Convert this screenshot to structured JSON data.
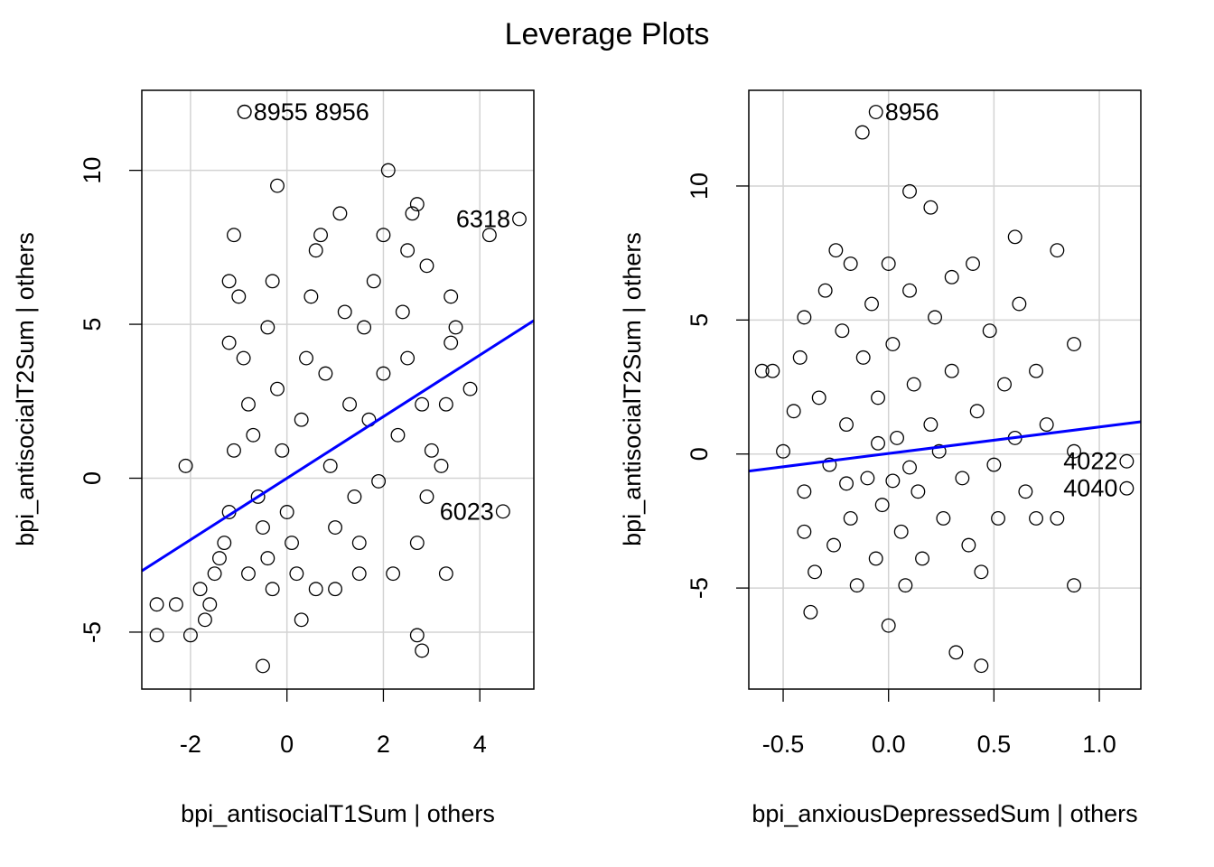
{
  "chart_data": {
    "title": "Leverage Plots",
    "panels": [
      {
        "type": "scatter",
        "xlabel": "bpi_antisocialT1Sum | others",
        "ylabel": "bpi_antisocialT2Sum  | others",
        "xlim": [
          -3.01,
          5.12
        ],
        "ylim": [
          -6.85,
          12.6
        ],
        "xticks": [
          -2,
          0,
          2,
          4
        ],
        "yticks": [
          -5,
          0,
          5,
          10
        ],
        "grid": true,
        "fit_line": {
          "slope": 1.0,
          "intercept": 0.0,
          "color": "#0000ff"
        },
        "labeled_points": [
          {
            "label": "8955",
            "x": -0.88,
            "y": 11.9
          },
          {
            "label": "8956",
            "x": -0.88,
            "y": 11.9
          },
          {
            "label": "6318",
            "x": 4.82,
            "y": 8.42
          },
          {
            "label": "6023",
            "x": 4.48,
            "y": -1.08
          }
        ],
        "points": [
          [
            -2.7,
            -5.1
          ],
          [
            -2.7,
            -4.1
          ],
          [
            -2.3,
            -4.1
          ],
          [
            -2.0,
            -5.1
          ],
          [
            -1.7,
            -4.6
          ],
          [
            -2.1,
            0.4
          ],
          [
            -1.8,
            -3.6
          ],
          [
            -1.6,
            -4.1
          ],
          [
            -1.5,
            -3.1
          ],
          [
            -1.4,
            -2.6
          ],
          [
            -1.3,
            -2.1
          ],
          [
            -1.2,
            -1.1
          ],
          [
            -1.1,
            0.9
          ],
          [
            -1.2,
            4.4
          ],
          [
            -1.2,
            6.4
          ],
          [
            -1.1,
            7.9
          ],
          [
            -1.0,
            5.9
          ],
          [
            -0.9,
            3.9
          ],
          [
            -0.8,
            2.4
          ],
          [
            -0.7,
            1.4
          ],
          [
            -0.6,
            -0.6
          ],
          [
            -0.5,
            -1.6
          ],
          [
            -0.4,
            -2.6
          ],
          [
            -0.3,
            -3.6
          ],
          [
            -0.4,
            4.9
          ],
          [
            -0.3,
            6.4
          ],
          [
            -0.2,
            9.5
          ],
          [
            -0.5,
            -6.1
          ],
          [
            -0.2,
            2.9
          ],
          [
            -0.1,
            0.9
          ],
          [
            0.0,
            -1.1
          ],
          [
            0.1,
            -2.1
          ],
          [
            0.2,
            -3.1
          ],
          [
            0.3,
            -4.6
          ],
          [
            0.3,
            1.9
          ],
          [
            0.4,
            3.9
          ],
          [
            0.5,
            5.9
          ],
          [
            0.6,
            7.4
          ],
          [
            0.7,
            7.9
          ],
          [
            0.8,
            3.4
          ],
          [
            0.9,
            0.4
          ],
          [
            1.0,
            -1.6
          ],
          [
            1.0,
            -3.6
          ],
          [
            1.1,
            8.6
          ],
          [
            1.2,
            5.4
          ],
          [
            1.3,
            2.4
          ],
          [
            1.4,
            -0.6
          ],
          [
            1.5,
            -2.1
          ],
          [
            1.6,
            4.9
          ],
          [
            1.7,
            1.9
          ],
          [
            1.8,
            6.4
          ],
          [
            1.9,
            -0.1
          ],
          [
            2.0,
            3.4
          ],
          [
            2.0,
            7.9
          ],
          [
            2.1,
            10.0
          ],
          [
            2.2,
            -3.1
          ],
          [
            2.3,
            1.4
          ],
          [
            2.4,
            5.4
          ],
          [
            2.5,
            3.9
          ],
          [
            2.6,
            8.6
          ],
          [
            2.7,
            -2.1
          ],
          [
            2.7,
            -5.1
          ],
          [
            2.8,
            -5.6
          ],
          [
            2.7,
            8.9
          ],
          [
            2.8,
            2.4
          ],
          [
            2.9,
            -0.6
          ],
          [
            3.0,
            0.9
          ],
          [
            3.2,
            0.4
          ],
          [
            3.3,
            -3.1
          ],
          [
            3.3,
            2.4
          ],
          [
            3.4,
            4.4
          ],
          [
            3.5,
            4.9
          ],
          [
            3.4,
            5.9
          ],
          [
            3.8,
            2.9
          ],
          [
            2.9,
            6.9
          ],
          [
            4.2,
            7.9
          ],
          [
            2.5,
            7.4
          ],
          [
            1.5,
            -3.1
          ],
          [
            0.6,
            -3.6
          ],
          [
            -0.8,
            -3.1
          ]
        ]
      },
      {
        "type": "scatter",
        "xlabel": "bpi_anxiousDepressedSum | others",
        "ylabel": "bpi_antisocialT2Sum  | others",
        "xlim": [
          -0.663,
          1.197
        ],
        "ylim": [
          -8.77,
          13.57
        ],
        "xticks": [
          -0.5,
          0.0,
          0.5,
          1.0
        ],
        "xtick_labels": [
          "-0.5",
          "0.0",
          "0.5",
          "1.0"
        ],
        "yticks": [
          -5,
          0,
          5,
          10
        ],
        "grid": true,
        "fit_line": {
          "slope": 0.99,
          "intercept": 0.02,
          "color": "#0000ff"
        },
        "labeled_points": [
          {
            "label": "8956",
            "x": -0.06,
            "y": 12.76
          },
          {
            "label": "4022",
            "x": 1.13,
            "y": -0.27
          },
          {
            "label": "4040",
            "x": 1.13,
            "y": -1.28
          }
        ],
        "points": [
          [
            -0.124,
            12.0
          ],
          [
            -0.6,
            3.1
          ],
          [
            -0.55,
            3.1
          ],
          [
            -0.5,
            0.1
          ],
          [
            -0.45,
            1.6
          ],
          [
            -0.42,
            3.6
          ],
          [
            -0.4,
            5.1
          ],
          [
            -0.4,
            -1.4
          ],
          [
            -0.4,
            -2.9
          ],
          [
            -0.37,
            -5.9
          ],
          [
            -0.35,
            -4.4
          ],
          [
            -0.33,
            2.1
          ],
          [
            -0.3,
            6.1
          ],
          [
            -0.28,
            -0.4
          ],
          [
            -0.26,
            -3.4
          ],
          [
            -0.25,
            7.6
          ],
          [
            -0.22,
            4.6
          ],
          [
            -0.2,
            1.1
          ],
          [
            -0.18,
            -2.4
          ],
          [
            -0.18,
            7.1
          ],
          [
            -0.15,
            -4.9
          ],
          [
            -0.12,
            3.6
          ],
          [
            -0.1,
            -0.9
          ],
          [
            -0.08,
            5.6
          ],
          [
            -0.06,
            -3.9
          ],
          [
            -0.05,
            2.1
          ],
          [
            -0.03,
            -1.9
          ],
          [
            0.0,
            7.1
          ],
          [
            0.0,
            -6.4
          ],
          [
            0.02,
            4.1
          ],
          [
            0.04,
            0.6
          ],
          [
            0.06,
            -2.9
          ],
          [
            0.08,
            -4.9
          ],
          [
            0.1,
            6.1
          ],
          [
            0.1,
            9.8
          ],
          [
            0.12,
            2.6
          ],
          [
            0.14,
            -1.4
          ],
          [
            0.16,
            -3.9
          ],
          [
            0.2,
            9.2
          ],
          [
            0.22,
            5.1
          ],
          [
            0.24,
            0.1
          ],
          [
            0.26,
            -2.4
          ],
          [
            0.3,
            6.6
          ],
          [
            0.3,
            3.1
          ],
          [
            0.32,
            -7.4
          ],
          [
            0.35,
            -0.9
          ],
          [
            0.38,
            -3.4
          ],
          [
            0.4,
            7.1
          ],
          [
            0.42,
            1.6
          ],
          [
            0.44,
            -4.4
          ],
          [
            0.44,
            -7.9
          ],
          [
            0.48,
            4.6
          ],
          [
            0.5,
            -0.4
          ],
          [
            0.52,
            -2.4
          ],
          [
            0.55,
            2.6
          ],
          [
            0.6,
            0.6
          ],
          [
            0.6,
            8.1
          ],
          [
            0.62,
            5.6
          ],
          [
            0.65,
            -1.4
          ],
          [
            0.7,
            3.1
          ],
          [
            0.7,
            -2.4
          ],
          [
            0.75,
            1.1
          ],
          [
            0.8,
            7.6
          ],
          [
            0.8,
            -2.4
          ],
          [
            0.88,
            4.1
          ],
          [
            0.88,
            -4.9
          ],
          [
            0.88,
            0.1
          ],
          [
            0.02,
            -1.0
          ],
          [
            -0.05,
            0.4
          ],
          [
            0.1,
            -0.5
          ],
          [
            0.2,
            1.1
          ],
          [
            -0.2,
            -1.1
          ]
        ]
      }
    ]
  }
}
